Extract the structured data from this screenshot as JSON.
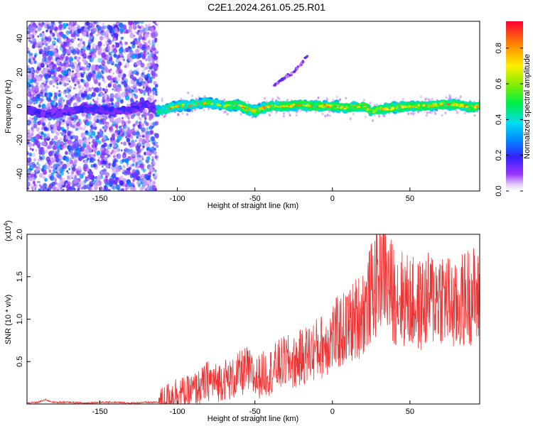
{
  "title": "C2E1.2024.261.05.25.R01",
  "chart_data": [
    {
      "type": "heatmap",
      "xlabel": "Height of straight line (km)",
      "ylabel": "Frequency (Hz)",
      "xlim": [
        -197,
        95
      ],
      "ylim": [
        -50,
        50
      ],
      "xticks": [
        -150,
        -100,
        -50,
        0,
        50
      ],
      "xtick_labels": [
        "-150",
        "-100",
        "-50",
        "0",
        "50"
      ],
      "yticks": [
        -40,
        -20,
        0,
        20,
        40
      ],
      "ytick_labels": [
        "-40",
        "-20",
        "0",
        "20",
        "40"
      ],
      "colorbar": {
        "label": "Normalized spectral amplitude",
        "range": [
          0,
          0.95
        ],
        "ticks": [
          0.0,
          0.2,
          0.4,
          0.6,
          0.8
        ],
        "tick_labels": [
          "0.0",
          "0.2",
          "0.4",
          "0.6",
          "0.8"
        ],
        "colormap": "rainbow"
      },
      "noisy_region_x": [
        -197,
        -113
      ],
      "trace": {
        "x": [
          -197,
          -185,
          -170,
          -160,
          -150,
          -140,
          -130,
          -120,
          -113,
          -105,
          -100,
          -90,
          -80,
          -70,
          -60,
          -55,
          -50,
          -45,
          -40,
          -30,
          -20,
          -10,
          0,
          10,
          20,
          25,
          30,
          40,
          50,
          60,
          70,
          80,
          90,
          95
        ],
        "y": [
          -2,
          -5,
          -3,
          -1,
          -2,
          -3,
          -2,
          1,
          -3,
          -1,
          0,
          1,
          2,
          0,
          1,
          -2,
          -3,
          -1,
          0,
          0,
          1,
          0,
          0,
          -1,
          0,
          -3,
          -2,
          -1,
          0,
          0,
          1,
          1,
          -1,
          0
        ]
      },
      "branch": {
        "x": [
          -38,
          -32,
          -25,
          -20,
          -16
        ],
        "y": [
          12,
          16,
          20,
          25,
          30
        ]
      },
      "grid": false,
      "legend": "none"
    },
    {
      "type": "line",
      "xlabel": "Height of straight line (km)",
      "ylabel": "SNR (10 * v/v)",
      "multiplier_label": "(x10",
      "multiplier_exponent": "4",
      "xlim": [
        -197,
        95
      ],
      "ylim": [
        0,
        2.0
      ],
      "xticks": [
        -150,
        -100,
        -50,
        0,
        50
      ],
      "xtick_labels": [
        "-150",
        "-100",
        "-50",
        "0",
        "50"
      ],
      "yticks": [
        0.5,
        1.0,
        1.5,
        2.0
      ],
      "ytick_labels": [
        "0.5",
        "1.0",
        "1.5",
        "2.0"
      ],
      "series": [
        {
          "color": "#ee3333",
          "x": [
            -197,
            -190,
            -185,
            -180,
            -170,
            -160,
            -150,
            -140,
            -130,
            -120,
            -112,
            -108,
            -104,
            -100,
            -95,
            -90,
            -85,
            -80,
            -75,
            -70,
            -65,
            -60,
            -55,
            -50,
            -45,
            -40,
            -35,
            -30,
            -25,
            -20,
            -15,
            -10,
            -5,
            0,
            5,
            10,
            15,
            20,
            25,
            30,
            33,
            35,
            40,
            45,
            50,
            55,
            60,
            65,
            70,
            75,
            80,
            85,
            90,
            95
          ],
          "y": [
            0.01,
            0.02,
            0.05,
            0.02,
            0.02,
            0.01,
            0.02,
            0.02,
            0.01,
            0.02,
            0.02,
            0.06,
            0.1,
            0.15,
            0.12,
            0.16,
            0.2,
            0.28,
            0.25,
            0.3,
            0.28,
            0.35,
            0.4,
            0.3,
            0.35,
            0.38,
            0.45,
            0.5,
            0.48,
            0.55,
            0.6,
            0.65,
            0.7,
            0.8,
            0.85,
            0.9,
            1.0,
            1.1,
            1.3,
            1.5,
            1.7,
            1.4,
            1.3,
            1.25,
            1.2,
            1.15,
            1.2,
            1.25,
            1.3,
            1.2,
            1.1,
            1.25,
            1.3,
            1.2
          ]
        }
      ],
      "grid": false,
      "legend": "none"
    }
  ]
}
